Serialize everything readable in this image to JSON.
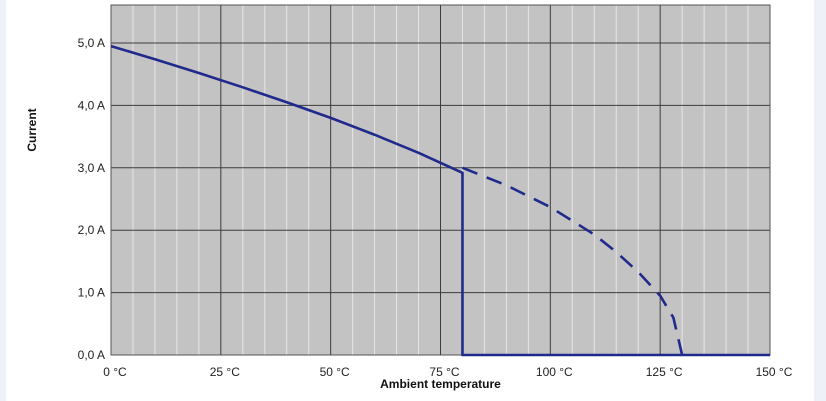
{
  "chart_data": {
    "type": "line",
    "xlabel": "Ambient temperature",
    "ylabel": "Current",
    "xlim": [
      0,
      150
    ],
    "ylim": [
      0,
      5
    ],
    "x_ticks": [
      0,
      25,
      50,
      75,
      100,
      125,
      150
    ],
    "x_tick_labels": [
      "0 °C",
      "25 °C",
      "50 °C",
      "75 °C",
      "100 °C",
      "125 °C",
      "150 °C"
    ],
    "y_ticks": [
      0,
      1,
      2,
      3,
      4,
      5
    ],
    "y_tick_labels": [
      "0,0 A",
      "1,0 A",
      "2,0 A",
      "3,0 A",
      "4,0 A",
      "5,0 A"
    ],
    "x_minor_step": 5,
    "grid": true,
    "series": [
      {
        "style": "solid",
        "color": "#1f2a8c",
        "x": [
          0,
          10,
          20,
          30,
          40,
          50,
          60,
          70,
          80,
          80,
          150
        ],
        "y": [
          4.95,
          4.74,
          4.52,
          4.29,
          4.05,
          3.8,
          3.53,
          3.24,
          2.92,
          0,
          0
        ]
      },
      {
        "style": "dashed",
        "color": "#1f2a8c",
        "x": [
          80,
          90,
          100,
          110,
          115,
          120,
          125,
          128,
          130
        ],
        "y": [
          3.0,
          2.72,
          2.37,
          1.93,
          1.65,
          1.33,
          0.95,
          0.6,
          0.0
        ]
      }
    ]
  }
}
